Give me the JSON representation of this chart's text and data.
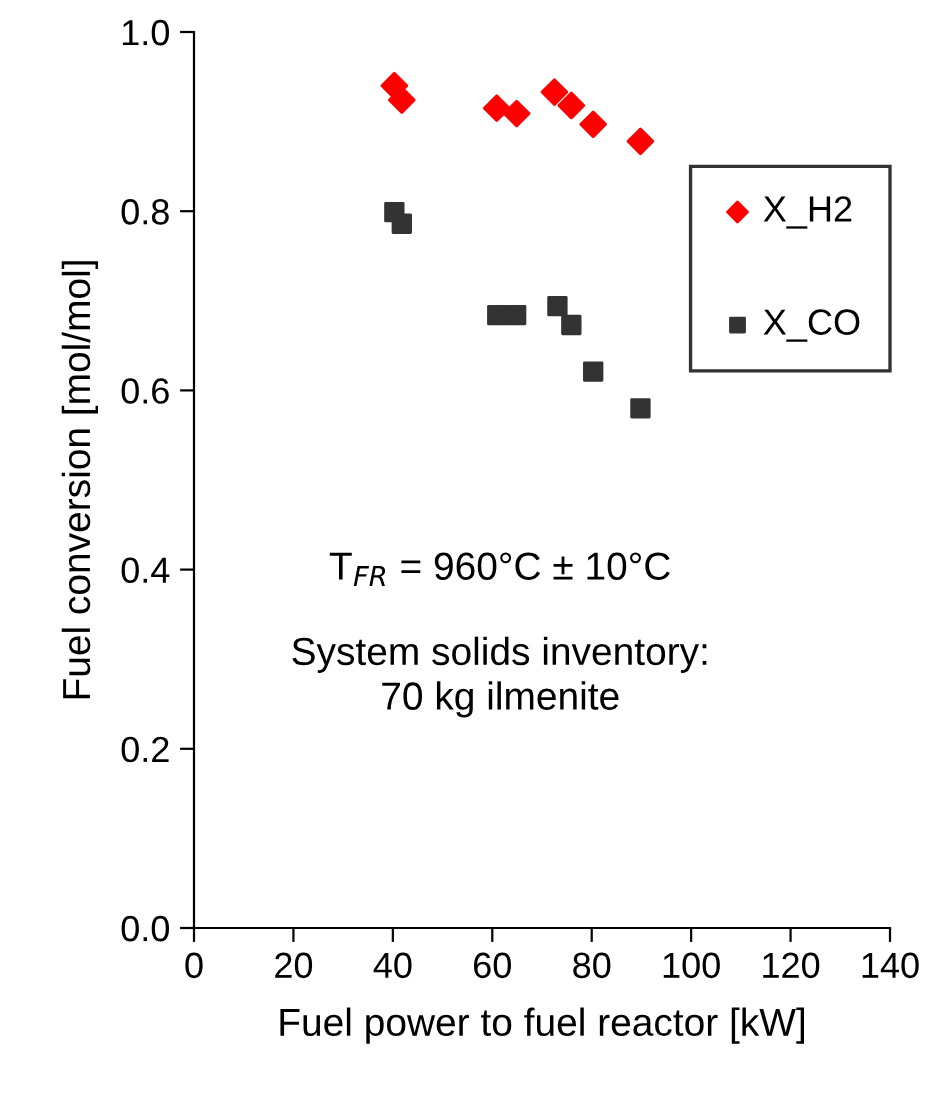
{
  "chart_data": {
    "type": "scatter",
    "xlabel": "Fuel power to fuel reactor [kW]",
    "ylabel": "Fuel conversion [mol/mol]",
    "xlim": [
      0,
      140
    ],
    "xticks": [
      0,
      20,
      40,
      60,
      80,
      100,
      120,
      140
    ],
    "ylim": [
      0,
      1.0
    ],
    "yticks": [
      {
        "value": 0,
        "label": "0.0"
      },
      0.2,
      0.4,
      0.6,
      0.8,
      {
        "value": 1.0,
        "label": "1.0"
      }
    ],
    "grid": false,
    "legend": "top right",
    "series": [
      {
        "name": "X_H2",
        "color": "#ff0000",
        "marker": "diamond",
        "x": [
          40.3,
          41.8,
          60.9,
          64.9,
          72.5,
          75.9,
          80.3,
          89.8
        ],
        "values": [
          0.94,
          0.924,
          0.915,
          0.909,
          0.933,
          0.918,
          0.897,
          0.878
        ]
      },
      {
        "name": "X_CO",
        "color": "#333333",
        "marker": "square",
        "x": [
          40.3,
          41.8,
          61.0,
          64.8,
          73.1,
          75.9,
          80.3,
          89.8
        ],
        "values": [
          0.799,
          0.786,
          0.684,
          0.684,
          0.694,
          0.673,
          0.621,
          0.58
        ]
      }
    ],
    "annotations": [
      "T$_{FR}$ = 960°C ± 10°C",
      "System solids inventory:\n70 kg ilmenite"
    ]
  }
}
